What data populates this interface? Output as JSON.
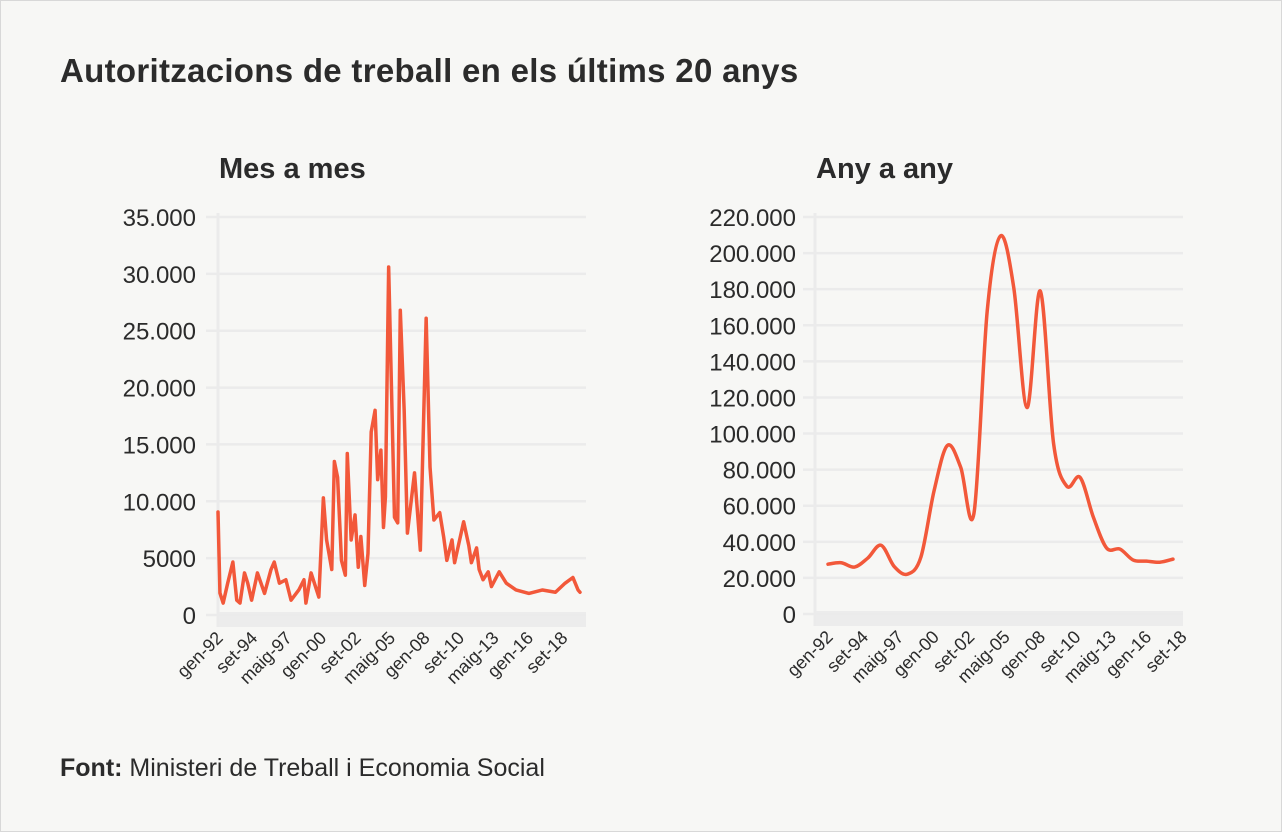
{
  "title": "Autoritzacions de treball en els últims 20 anys",
  "source": {
    "label": "Font:",
    "text": "Ministeri de Treball i Economia Social"
  },
  "colors": {
    "line": "#f2583a",
    "grid": "#ebebeb",
    "background": "#f7f7f5",
    "text": "#2b2b2b"
  },
  "chart_data": [
    {
      "type": "line",
      "title": "Mes a mes",
      "xlabel": "",
      "ylabel": "",
      "ylim": [
        0,
        35000
      ],
      "xlim": [
        1992,
        2020
      ],
      "grid": true,
      "y_ticks": [
        0,
        5000,
        10000,
        15000,
        20000,
        25000,
        30000,
        35000
      ],
      "y_tick_labels": [
        "0",
        "5000",
        "10.000",
        "15.000",
        "20.000",
        "25.000",
        "30.000",
        "35.000"
      ],
      "x_ticks": [
        1992.0,
        1994.667,
        1997.333,
        2000.0,
        2002.667,
        2005.333,
        2008.0,
        2010.667,
        2013.333,
        2016.0,
        2018.667
      ],
      "x_tick_labels": [
        "gen-92",
        "set-94",
        "maig-97",
        "gen-00",
        "set-02",
        "maig-05",
        "gen-08",
        "set-10",
        "maig-13",
        "gen-16",
        "set-18"
      ],
      "x": [
        1992.0,
        1992.15,
        1992.4,
        1992.75,
        1993.15,
        1993.45,
        1993.7,
        1994.05,
        1994.3,
        1994.6,
        1995.05,
        1995.6,
        1996.1,
        1996.35,
        1996.75,
        1997.25,
        1997.65,
        1998.25,
        1998.65,
        1998.8,
        1999.2,
        1999.8,
        2000.15,
        2000.4,
        2000.8,
        2001.0,
        2001.25,
        2001.55,
        2001.85,
        2002.0,
        2002.3,
        2002.6,
        2002.85,
        2003.05,
        2003.35,
        2003.6,
        2003.85,
        2004.15,
        2004.35,
        2004.6,
        2004.8,
        2004.95,
        2005.2,
        2005.65,
        2005.9,
        2006.1,
        2006.4,
        2006.65,
        2007.2,
        2007.65,
        2008.1,
        2008.4,
        2008.7,
        2009.15,
        2009.45,
        2009.7,
        2010.1,
        2010.3,
        2011.0,
        2011.4,
        2011.6,
        2012.0,
        2012.2,
        2012.5,
        2012.9,
        2013.15,
        2013.75,
        2014.3,
        2015.05,
        2016.05,
        2017.1,
        2018.1,
        2018.85,
        2019.45,
        2019.85,
        2020.0
      ],
      "values": [
        9060,
        1930,
        1050,
        2800,
        4660,
        1300,
        1050,
        3700,
        2800,
        1300,
        3700,
        1900,
        4000,
        4660,
        2800,
        3100,
        1300,
        2200,
        3100,
        1050,
        3700,
        1580,
        10300,
        6600,
        4000,
        13500,
        12100,
        4800,
        3500,
        14200,
        6600,
        8800,
        4200,
        6900,
        2600,
        5400,
        16100,
        18000,
        11900,
        14500,
        7700,
        10400,
        30600,
        8600,
        8100,
        26800,
        18000,
        7200,
        12500,
        5700,
        26100,
        13000,
        8350,
        9000,
        6900,
        4800,
        6600,
        4600,
        8200,
        6100,
        4600,
        5900,
        4000,
        3100,
        3800,
        2500,
        3800,
        2800,
        2200,
        1900,
        2200,
        2000,
        2800,
        3300,
        2200,
        2000
      ]
    },
    {
      "type": "line",
      "title": "Any a any",
      "xlabel": "",
      "ylabel": "",
      "ylim": [
        0,
        220000
      ],
      "xlim": [
        1992,
        2018
      ],
      "grid": true,
      "y_ticks": [
        0,
        20000,
        40000,
        60000,
        80000,
        100000,
        120000,
        140000,
        160000,
        180000,
        200000,
        220000
      ],
      "y_tick_labels": [
        "0",
        "20.000",
        "40.000",
        "60.000",
        "80.000",
        "100.000",
        "120.000",
        "140.000",
        "160.000",
        "180.000",
        "200.000",
        "220.000"
      ],
      "x_ticks": [
        1992.0,
        1994.667,
        1997.333,
        2000.0,
        2002.667,
        2005.333,
        2008.0,
        2010.667,
        2013.333,
        2016.0,
        2018.667
      ],
      "x_tick_labels": [
        "gen-92",
        "set-94",
        "maig-97",
        "gen-00",
        "set-02",
        "maig-05",
        "gen-08",
        "set-10",
        "maig-13",
        "gen-16",
        "set-18"
      ],
      "x": [
        1992,
        1993,
        1994,
        1995,
        1996,
        1997,
        1998,
        1999,
        2000,
        2001,
        2002,
        2003,
        2004,
        2005,
        2006,
        2007,
        2008,
        2009,
        2010,
        2011,
        2012,
        2013,
        2014,
        2015,
        2016,
        2017,
        2018
      ],
      "values": [
        27600,
        28400,
        26000,
        31000,
        38100,
        26200,
        22100,
        31500,
        68500,
        93400,
        81300,
        55800,
        168000,
        209500,
        180800,
        114400,
        179000,
        94500,
        70800,
        75700,
        53600,
        36500,
        36000,
        29900,
        29300,
        28700,
        30400
      ]
    }
  ]
}
